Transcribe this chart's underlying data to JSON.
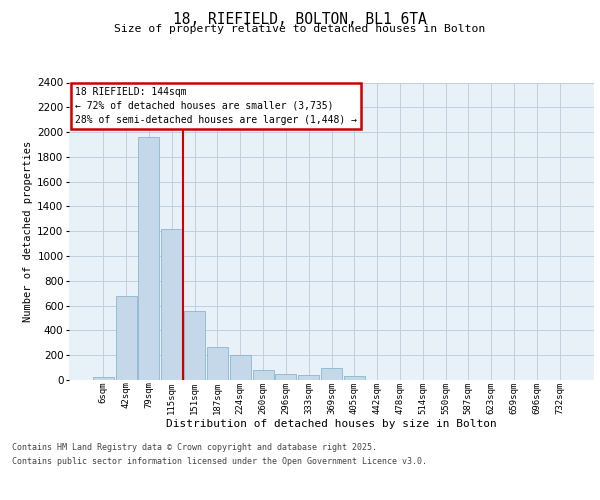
{
  "title1": "18, RIEFIELD, BOLTON, BL1 6TA",
  "title2": "Size of property relative to detached houses in Bolton",
  "xlabel": "Distribution of detached houses by size in Bolton",
  "ylabel": "Number of detached properties",
  "bin_labels": [
    "6sqm",
    "42sqm",
    "79sqm",
    "115sqm",
    "151sqm",
    "187sqm",
    "224sqm",
    "260sqm",
    "296sqm",
    "333sqm",
    "369sqm",
    "405sqm",
    "442sqm",
    "478sqm",
    "514sqm",
    "550sqm",
    "587sqm",
    "623sqm",
    "659sqm",
    "696sqm",
    "732sqm"
  ],
  "bar_heights": [
    25,
    680,
    1960,
    1220,
    560,
    270,
    200,
    80,
    50,
    40,
    100,
    30,
    0,
    0,
    0,
    0,
    0,
    0,
    0,
    0,
    0
  ],
  "bar_color": "#c5d8ea",
  "bar_edge_color": "#7aaecb",
  "vline_x": 3.48,
  "vline_color": "#cc0000",
  "ylim_min": 0,
  "ylim_max": 2400,
  "yticks": [
    0,
    200,
    400,
    600,
    800,
    1000,
    1200,
    1400,
    1600,
    1800,
    2000,
    2200,
    2400
  ],
  "annotation_title": "18 RIEFIELD: 144sqm",
  "annotation_line1": "← 72% of detached houses are smaller (3,735)",
  "annotation_line2": "28% of semi-detached houses are larger (1,448) →",
  "annotation_box_bg": "#ffffff",
  "annotation_box_edge": "#cc0000",
  "grid_color": "#c0d0e0",
  "bg_color": "#e8f0f8",
  "footnote1": "Contains HM Land Registry data © Crown copyright and database right 2025.",
  "footnote2": "Contains public sector information licensed under the Open Government Licence v3.0."
}
